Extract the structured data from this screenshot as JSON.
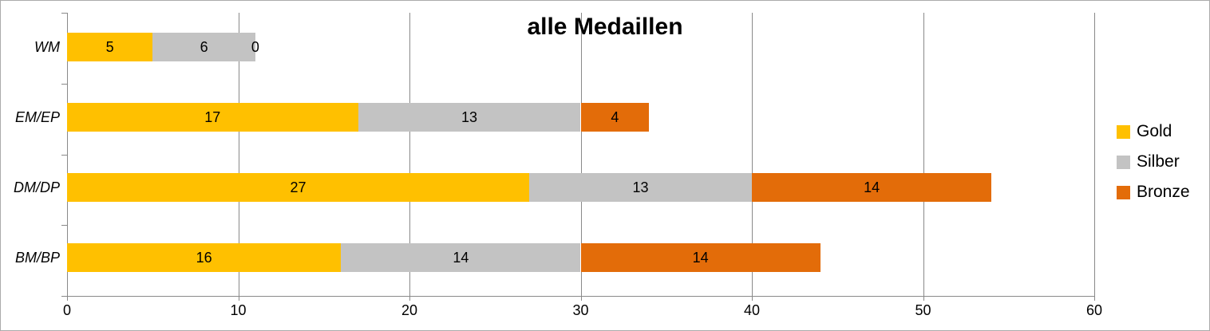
{
  "chart_data": {
    "type": "bar",
    "orientation": "horizontal",
    "stacked": true,
    "title": "alle Medaillen",
    "categories": [
      "WM",
      "EM/EP",
      "DM/DP",
      "BM/BP"
    ],
    "series": [
      {
        "name": "Gold",
        "color": "#FFC000",
        "values": [
          5,
          17,
          27,
          16
        ]
      },
      {
        "name": "Silber",
        "color": "#C3C3C3",
        "values": [
          6,
          13,
          13,
          14
        ]
      },
      {
        "name": "Bronze",
        "color": "#E36C09",
        "values": [
          0,
          4,
          14,
          14
        ]
      }
    ],
    "totals": [
      11,
      34,
      54,
      44
    ],
    "x_ticks": [
      "0",
      "10",
      "20",
      "30",
      "40",
      "50",
      "60"
    ],
    "xlim": [
      0,
      60
    ],
    "xlabel": "",
    "ylabel": "",
    "grid": true,
    "legend_position": "right",
    "data_labels": "inside-center"
  },
  "style": {
    "gridline_color": "#898989",
    "axis_color": "#898989",
    "border_color": "#ABABAB",
    "background_color": "#FFFFFF",
    "text_color": "#000000"
  }
}
